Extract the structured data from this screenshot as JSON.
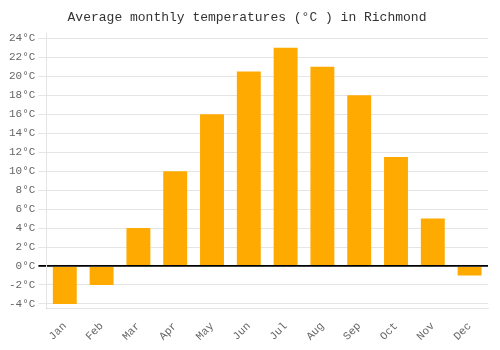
{
  "chart_data": {
    "type": "bar",
    "title": "Average monthly temperatures (°C ) in Richmond",
    "categories": [
      "Jan",
      "Feb",
      "Mar",
      "Apr",
      "May",
      "Jun",
      "Jul",
      "Aug",
      "Sep",
      "Oct",
      "Nov",
      "Dec"
    ],
    "values": [
      -4,
      -2,
      4,
      10,
      16,
      20.5,
      23,
      21,
      18,
      11.5,
      5,
      -1
    ],
    "color": "#FFAA00",
    "ylim": [
      -4.5,
      24.5
    ],
    "yticks": [
      {
        "value": -4,
        "label": "-4°C"
      },
      {
        "value": -2,
        "label": "-2°C"
      },
      {
        "value": 0,
        "label": "0°C"
      },
      {
        "value": 2,
        "label": "2°C"
      },
      {
        "value": 4,
        "label": "4°C"
      },
      {
        "value": 6,
        "label": "6°C"
      },
      {
        "value": 8,
        "label": "8°C"
      },
      {
        "value": 10,
        "label": "10°C"
      },
      {
        "value": 12,
        "label": "12°C"
      },
      {
        "value": 14,
        "label": "14°C"
      },
      {
        "value": 16,
        "label": "16°C"
      },
      {
        "value": 18,
        "label": "18°C"
      },
      {
        "value": 20,
        "label": "20°C"
      },
      {
        "value": 22,
        "label": "22°C"
      },
      {
        "value": 24,
        "label": "24°C"
      }
    ],
    "grid": true
  }
}
